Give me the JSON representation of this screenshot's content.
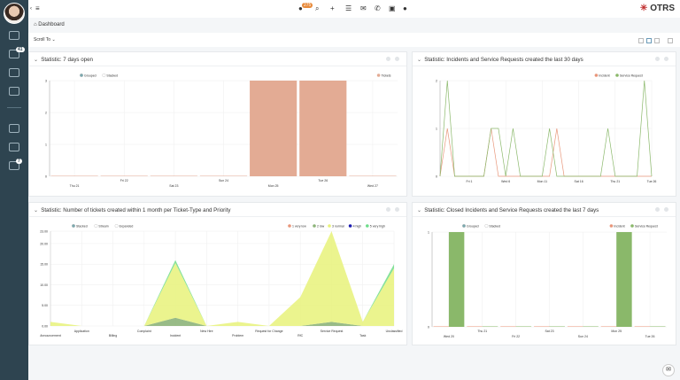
{
  "topbar": {
    "notification_count": "275",
    "logo": "OTRS",
    "icons": [
      "bell-icon",
      "search-icon",
      "plus-icon",
      "list-icon",
      "envelope-icon",
      "phone-icon",
      "calendar-icon",
      "help-icon"
    ]
  },
  "sidebar": {
    "badges": [
      "41",
      "7"
    ]
  },
  "breadcrumb": {
    "label": "Dashboard"
  },
  "scroll_to": {
    "label": "Scroll To"
  },
  "colors": {
    "sidebar": "#2e4450",
    "tickets": "#e3ab94",
    "incident": "#e8967a",
    "service_request": "#8ab86a",
    "normal": "#e8f27a",
    "low": "#8db47a",
    "very_high": "#6edc8a",
    "high": "#1a1ab0"
  },
  "panels": [
    {
      "title": "Statistic: 7 days open"
    },
    {
      "title": "Statistic: Incidents and Service Requests created the last 30 days"
    },
    {
      "title": "Statistic: Number of tickets created within 1 month per Ticket-Type and Priority"
    },
    {
      "title": "Statistic: Closed Incidents and Service Requests created the last 7 days"
    }
  ],
  "chart_data": [
    {
      "type": "bar",
      "modes": [
        "Grouped",
        "Stacked"
      ],
      "categories": [
        "Thu 21",
        "Fri 22",
        "Sat 23",
        "Sun 24",
        "Mon 25",
        "Tue 26",
        "Wed 27"
      ],
      "series": [
        {
          "name": "Tickets",
          "values": [
            0,
            0,
            0,
            0,
            3,
            3,
            0
          ]
        }
      ],
      "yticks": [
        "0",
        "1",
        "2",
        "3"
      ],
      "ylim": [
        0,
        3
      ],
      "legend": "top-right",
      "grid": true
    },
    {
      "type": "line",
      "xticks": [
        {
          "label": "Fri 1",
          "day": 4
        },
        {
          "label": "Wed 6",
          "day": 9
        },
        {
          "label": "Mon 11",
          "day": 14
        },
        {
          "label": "Sat 16",
          "day": 19
        },
        {
          "label": "Thu 21",
          "day": 24
        },
        {
          "label": "Tue 26",
          "day": 29
        }
      ],
      "series": [
        {
          "name": "Incident",
          "values": [
            0,
            1,
            0,
            0,
            0,
            0,
            0,
            1,
            0,
            0,
            0,
            0,
            0,
            0,
            0,
            0,
            1,
            0,
            0,
            0,
            0,
            0,
            0,
            0,
            0,
            0,
            0,
            0,
            0,
            0
          ]
        },
        {
          "name": "Service Request",
          "values": [
            0,
            2,
            0,
            0,
            0,
            0,
            0,
            1,
            1,
            0,
            1,
            0,
            0,
            0,
            0,
            1,
            0,
            0,
            0,
            0,
            0,
            0,
            0,
            1,
            0,
            0,
            0,
            0,
            2,
            0
          ]
        }
      ],
      "yticks": [
        "0",
        "1",
        "2"
      ],
      "ylim": [
        0,
        2
      ],
      "legend": "top-right",
      "grid": true
    },
    {
      "type": "area",
      "modes": [
        "Stacked",
        "Stream",
        "Expanded"
      ],
      "categories": [
        "Announcement",
        "Application",
        "Billing",
        "Complaint",
        "Incident",
        "New Hire",
        "Problem",
        "Request for Change",
        "RfC",
        "Service Request",
        "Task",
        "Unclassified"
      ],
      "series": [
        {
          "name": "1 very low",
          "values": [
            0,
            0,
            0,
            0,
            0,
            0,
            0,
            0,
            0,
            0,
            0,
            0
          ]
        },
        {
          "name": "2 low",
          "values": [
            0,
            0,
            0,
            0,
            2,
            0,
            0,
            0,
            0,
            1,
            0,
            0
          ]
        },
        {
          "name": "3 normal",
          "values": [
            1,
            0,
            0,
            0,
            13.3,
            0,
            1,
            0,
            7,
            22,
            1,
            14
          ]
        },
        {
          "name": "4 high",
          "values": [
            0,
            0,
            0,
            0,
            0,
            0,
            0,
            0,
            0,
            0,
            0,
            0
          ]
        },
        {
          "name": "5 very high",
          "values": [
            0,
            0,
            0,
            0,
            0.7,
            0,
            0,
            0,
            0,
            0,
            0,
            1
          ]
        }
      ],
      "yticks": [
        "0.00",
        "5.00",
        "10.00",
        "15.00",
        "20.00",
        "23.00"
      ],
      "ylim": [
        0,
        23
      ],
      "legend": "top-right",
      "grid": true
    },
    {
      "type": "bar",
      "modes": [
        "Grouped",
        "Stacked"
      ],
      "categories": [
        "Wed 20",
        "Thu 21",
        "Fri 22",
        "Sat 23",
        "Sun 24",
        "Mon 25",
        "Tue 26"
      ],
      "series": [
        {
          "name": "Incident",
          "values": [
            0,
            0,
            0,
            0,
            0,
            0,
            0
          ]
        },
        {
          "name": "Service Request",
          "values": [
            1,
            0,
            0,
            0,
            0,
            1,
            0
          ]
        }
      ],
      "yticks": [
        "0",
        "1"
      ],
      "ylim": [
        0,
        1
      ],
      "legend": "top-right",
      "grid": true
    }
  ]
}
